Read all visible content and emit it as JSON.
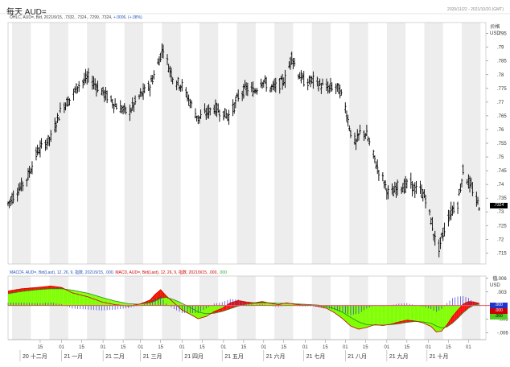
{
  "header": {
    "title": "每天 AUD=",
    "date_range": "2020/11/22 - 2021/10/20 (GMT)",
    "price_info": "OHLC, AUD=, Bid, 2021/9/15, .7332, .7324, .7299, .7324, ",
    "price_change": "+.0006, (+.08%)",
    "price_unit_line1": "价格",
    "price_unit_line2": "USD",
    "macd_info_a": "MACDF, AUD=, Bid(Last), 12, 26, 9, 指数, 2021/9/15, .000,",
    "macd_info_b": "MACD, AUD=, Bid(Last), 12, 26, 9, 指数, 2021/9/15, .000,",
    "macd_info_c": ".000",
    "macd_unit_line1": "值",
    "macd_unit_line2": "USD"
  },
  "badges": {
    "last_price": ".7324",
    "macd_values": [
      ".000",
      ".000",
      ".000"
    ]
  },
  "colors": {
    "grid_band": "#ededed",
    "candle": "#000000",
    "macd_fill_pos": "#7fff00",
    "macd_fill_neg": "#ff0000",
    "macd_line": "#cc0000",
    "signal_line": "#228b22",
    "histogram": "#3a3adb",
    "zero_line": "#e8596b"
  },
  "chart_data": {
    "type": "candlestick+macd",
    "price_axis": {
      "ylim": [
        0.711,
        0.799
      ],
      "ticks": [
        0.715,
        0.72,
        0.725,
        0.73,
        0.735,
        0.74,
        0.745,
        0.75,
        0.755,
        0.76,
        0.765,
        0.77,
        0.775,
        0.78,
        0.785,
        0.79,
        0.795
      ],
      "tick_labels": [
        ".715",
        ".72",
        ".725",
        ".73",
        ".735",
        ".74",
        ".745",
        ".75",
        ".755",
        ".76",
        ".765",
        ".77",
        ".775",
        ".78",
        ".785",
        ".79",
        ".795"
      ]
    },
    "macd_axis": {
      "ylim": [
        -0.0075,
        0.0065
      ],
      "ticks": [
        0.006,
        0.003,
        -0.003,
        -0.006
      ],
      "tick_labels": [
        ".006",
        ".003",
        "-.003",
        "-.006"
      ]
    },
    "x_axis": {
      "day_labels": [
        "15",
        "01",
        "15",
        "01",
        "15",
        "01",
        "15",
        "01",
        "15",
        "01",
        "15",
        "01",
        "15",
        "01",
        "15",
        "01",
        "15",
        "01",
        "15",
        "01",
        "15",
        "01"
      ],
      "month_labels": [
        "20 十二月",
        "21 一月",
        "21 二月",
        "21 三月",
        "21 四月",
        "21 五月",
        "21 六月",
        "21 七月",
        "21 八月",
        "21 九月",
        "21 十月"
      ]
    },
    "price_path": [
      [
        0,
        0.733
      ],
      [
        6,
        0.737
      ],
      [
        14,
        0.742
      ],
      [
        22,
        0.752
      ],
      [
        32,
        0.757
      ],
      [
        40,
        0.768
      ],
      [
        48,
        0.772
      ],
      [
        52,
        0.776
      ],
      [
        60,
        0.779
      ],
      [
        70,
        0.774
      ],
      [
        80,
        0.769
      ],
      [
        90,
        0.766
      ],
      [
        98,
        0.772
      ],
      [
        106,
        0.776
      ],
      [
        112,
        0.784
      ],
      [
        116,
        0.79
      ],
      [
        120,
        0.783
      ],
      [
        124,
        0.778
      ],
      [
        130,
        0.776
      ],
      [
        136,
        0.77
      ],
      [
        142,
        0.764
      ],
      [
        148,
        0.766
      ],
      [
        154,
        0.768
      ],
      [
        160,
        0.766
      ],
      [
        166,
        0.765
      ],
      [
        172,
        0.772
      ],
      [
        178,
        0.775
      ],
      [
        184,
        0.774
      ],
      [
        190,
        0.778
      ],
      [
        196,
        0.775
      ],
      [
        202,
        0.776
      ],
      [
        208,
        0.779
      ],
      [
        212,
        0.787
      ],
      [
        216,
        0.781
      ],
      [
        222,
        0.777
      ],
      [
        228,
        0.778
      ],
      [
        234,
        0.776
      ],
      [
        240,
        0.775
      ],
      [
        244,
        0.776
      ],
      [
        248,
        0.774
      ],
      [
        252,
        0.768
      ],
      [
        256,
        0.759
      ],
      [
        260,
        0.755
      ],
      [
        264,
        0.76
      ],
      [
        268,
        0.758
      ],
      [
        272,
        0.752
      ],
      [
        276,
        0.746
      ],
      [
        280,
        0.742
      ],
      [
        284,
        0.737
      ],
      [
        288,
        0.737
      ],
      [
        292,
        0.74
      ],
      [
        296,
        0.739
      ],
      [
        300,
        0.741
      ],
      [
        304,
        0.738
      ],
      [
        308,
        0.738
      ],
      [
        312,
        0.735
      ],
      [
        316,
        0.727
      ],
      [
        319,
        0.72
      ],
      [
        322,
        0.717
      ],
      [
        325,
        0.722
      ],
      [
        328,
        0.727
      ],
      [
        332,
        0.731
      ],
      [
        336,
        0.733
      ],
      [
        340,
        0.745
      ],
      [
        344,
        0.741
      ],
      [
        348,
        0.737
      ],
      [
        350,
        0.734
      ],
      [
        352,
        0.7324
      ]
    ],
    "macd_series_path": [
      [
        0,
        0.0032
      ],
      [
        10,
        0.0037
      ],
      [
        22,
        0.004
      ],
      [
        32,
        0.0043
      ],
      [
        40,
        0.004
      ],
      [
        48,
        0.0028
      ],
      [
        60,
        0.0019
      ],
      [
        70,
        0.0008
      ],
      [
        80,
        0.0002
      ],
      [
        90,
        -0.0001
      ],
      [
        98,
        0.0003
      ],
      [
        106,
        0.0012
      ],
      [
        110,
        0.0025
      ],
      [
        114,
        0.0035
      ],
      [
        118,
        0.0022
      ],
      [
        124,
        0.0006
      ],
      [
        130,
        -0.001
      ],
      [
        136,
        -0.0019
      ],
      [
        142,
        -0.0029
      ],
      [
        148,
        -0.0024
      ],
      [
        154,
        -0.0013
      ],
      [
        160,
        -0.0006
      ],
      [
        166,
        0.0006
      ],
      [
        172,
        0.0011
      ],
      [
        178,
        0.0008
      ],
      [
        184,
        0.0006
      ],
      [
        190,
        0.0009
      ],
      [
        196,
        0.0005
      ],
      [
        202,
        0.0002
      ],
      [
        208,
        0.0006
      ],
      [
        214,
        0.0003
      ],
      [
        220,
        0.0001
      ],
      [
        226,
        0.0001
      ],
      [
        232,
        -0.0002
      ],
      [
        238,
        -0.0006
      ],
      [
        244,
        -0.0016
      ],
      [
        250,
        -0.0029
      ],
      [
        256,
        -0.0045
      ],
      [
        262,
        -0.0052
      ],
      [
        268,
        -0.0048
      ],
      [
        274,
        -0.0042
      ],
      [
        280,
        -0.0044
      ],
      [
        286,
        -0.0041
      ],
      [
        292,
        -0.0036
      ],
      [
        298,
        -0.0032
      ],
      [
        304,
        -0.0034
      ],
      [
        310,
        -0.0038
      ],
      [
        316,
        -0.0046
      ],
      [
        320,
        -0.0058
      ],
      [
        324,
        -0.0056
      ],
      [
        328,
        -0.0042
      ],
      [
        332,
        -0.0024
      ],
      [
        336,
        -0.001
      ],
      [
        340,
        0.0003
      ],
      [
        344,
        0.0009
      ],
      [
        348,
        0.0008
      ],
      [
        352,
        0.0005
      ]
    ],
    "signal_series_path": [
      [
        0,
        0.0026
      ],
      [
        10,
        0.0031
      ],
      [
        22,
        0.0035
      ],
      [
        32,
        0.0037
      ],
      [
        40,
        0.0037
      ],
      [
        48,
        0.0034
      ],
      [
        60,
        0.0027
      ],
      [
        70,
        0.0018
      ],
      [
        80,
        0.001
      ],
      [
        90,
        0.0004
      ],
      [
        98,
        0.0003
      ],
      [
        106,
        0.0006
      ],
      [
        110,
        0.001
      ],
      [
        114,
        0.0016
      ],
      [
        118,
        0.0018
      ],
      [
        124,
        0.0013
      ],
      [
        130,
        0.0005
      ],
      [
        136,
        -0.0004
      ],
      [
        142,
        -0.0014
      ],
      [
        148,
        -0.0018
      ],
      [
        154,
        -0.0017
      ],
      [
        160,
        -0.0013
      ],
      [
        166,
        -0.0007
      ],
      [
        172,
        -0.0001
      ],
      [
        178,
        0.0003
      ],
      [
        184,
        0.0005
      ],
      [
        190,
        0.0006
      ],
      [
        196,
        0.0006
      ],
      [
        202,
        0.0005
      ],
      [
        208,
        0.0005
      ],
      [
        214,
        0.0004
      ],
      [
        220,
        0.0003
      ],
      [
        226,
        0.0002
      ],
      [
        232,
        0.0001
      ],
      [
        238,
        -0.0002
      ],
      [
        244,
        -0.0007
      ],
      [
        250,
        -0.0015
      ],
      [
        256,
        -0.0026
      ],
      [
        262,
        -0.0036
      ],
      [
        268,
        -0.0042
      ],
      [
        274,
        -0.0043
      ],
      [
        280,
        -0.0043
      ],
      [
        286,
        -0.0042
      ],
      [
        292,
        -0.004
      ],
      [
        298,
        -0.0037
      ],
      [
        304,
        -0.0035
      ],
      [
        310,
        -0.0036
      ],
      [
        316,
        -0.0039
      ],
      [
        320,
        -0.0045
      ],
      [
        324,
        -0.0049
      ],
      [
        328,
        -0.0047
      ],
      [
        332,
        -0.0039
      ],
      [
        336,
        -0.0028
      ],
      [
        340,
        -0.0016
      ],
      [
        344,
        -0.0006
      ],
      [
        348,
        0.0001
      ],
      [
        352,
        0.0003
      ]
    ]
  }
}
